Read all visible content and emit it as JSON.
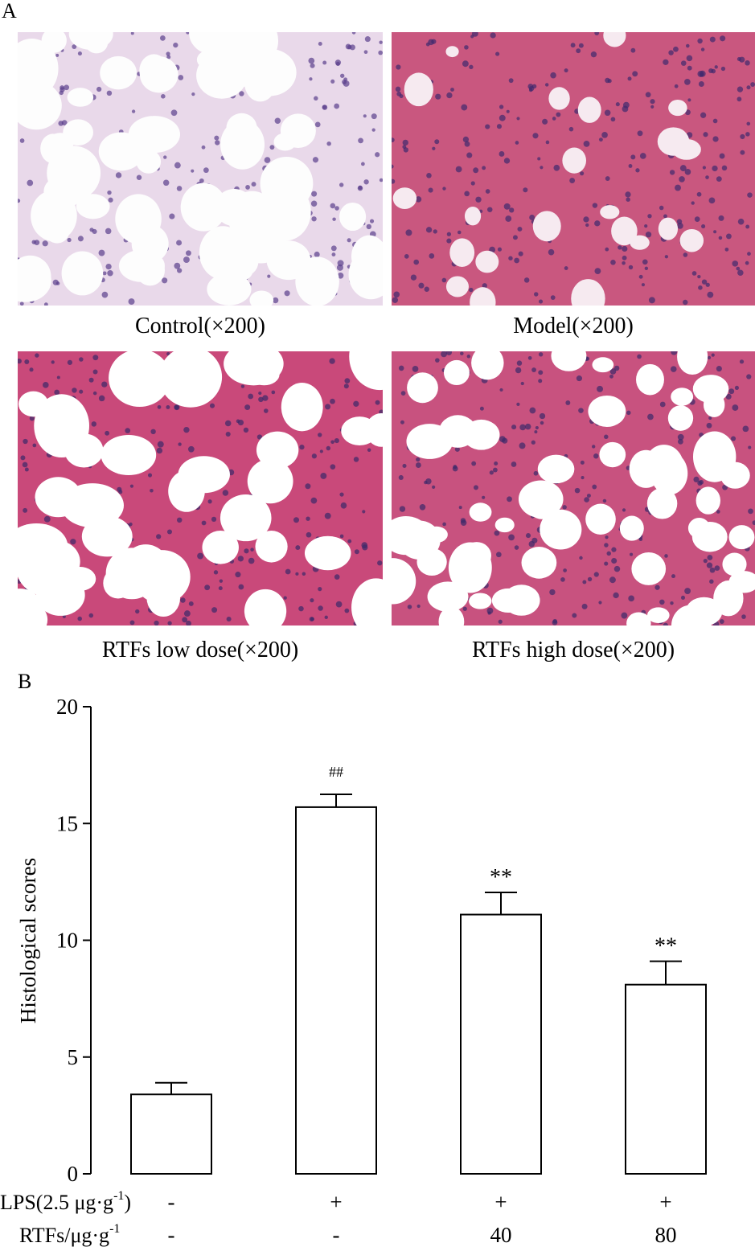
{
  "panel_a": {
    "label": "A",
    "images": [
      {
        "caption": "Control(×200)"
      },
      {
        "caption": "Model(×200)"
      },
      {
        "caption": "RTFs low dose(×200)"
      },
      {
        "caption": "RTFs high dose(×200)"
      }
    ]
  },
  "chart_data": {
    "type": "bar",
    "panel_label": "B",
    "y_label": "Histological scores",
    "values": [
      3.4,
      15.7,
      11.1,
      8.1
    ],
    "errors": [
      0.5,
      0.55,
      0.95,
      1.0
    ],
    "annotations": [
      null,
      "##",
      "**",
      "**"
    ],
    "conditions": [
      {
        "label": {
          "text": "LPS(2.5 μg·g",
          "sup": "-1",
          "tail": ")"
        },
        "values": [
          "-",
          "+",
          "+",
          "+"
        ]
      },
      {
        "label": {
          "text": "RTFs/μg·g",
          "sup": "-1"
        },
        "values": [
          "-",
          "-",
          "40",
          "80"
        ]
      }
    ],
    "color": "#ffffff",
    "ylim": [
      0,
      20
    ],
    "yticks": [
      0,
      5,
      10,
      15,
      20
    ]
  }
}
